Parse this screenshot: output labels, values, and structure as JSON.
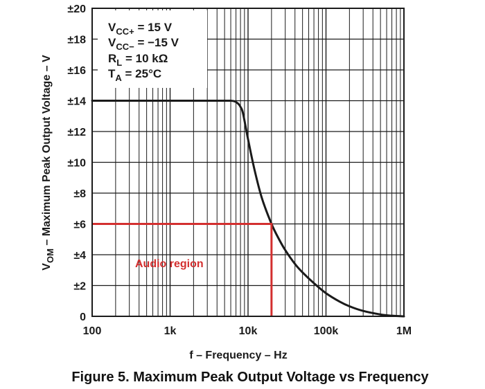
{
  "figure_caption": "Figure 5. Maximum Peak Output Voltage vs Frequency",
  "conditions": [
    {
      "main": "V",
      "sub": "CC+",
      "rest": " = 15 V"
    },
    {
      "main": "V",
      "sub": "CC−",
      "rest": " = −15 V"
    },
    {
      "main": "R",
      "sub": "L",
      "rest": " = 10 kΩ"
    },
    {
      "main": "T",
      "sub": "A",
      "rest": " = 25°C"
    }
  ],
  "colors": {
    "curve": "#1a1a1a",
    "audio": "#d32f2f",
    "grid": "#1a1a1a",
    "background": "#ffffff"
  },
  "chart_data": {
    "type": "line",
    "xscale": "log",
    "xlim": [
      100,
      1000000
    ],
    "ylim": [
      0,
      20
    ],
    "xlabel": "f – Frequency – Hz",
    "ylabel": {
      "main": "V",
      "sub": "OM",
      "rest": " – Maximum Peak Output Voltage – V"
    },
    "x_ticks": [
      {
        "value": 100,
        "label": "100"
      },
      {
        "value": 1000,
        "label": "1k"
      },
      {
        "value": 10000,
        "label": "10k"
      },
      {
        "value": 100000,
        "label": "100k"
      },
      {
        "value": 1000000,
        "label": "1M"
      }
    ],
    "y_ticks": [
      {
        "value": 0,
        "label": "0"
      },
      {
        "value": 2,
        "label": "±2"
      },
      {
        "value": 4,
        "label": "±4"
      },
      {
        "value": 6,
        "label": "±6"
      },
      {
        "value": 8,
        "label": "±8"
      },
      {
        "value": 10,
        "label": "±10"
      },
      {
        "value": 12,
        "label": "±12"
      },
      {
        "value": 14,
        "label": "±14"
      },
      {
        "value": 16,
        "label": "±16"
      },
      {
        "value": 18,
        "label": "±18"
      },
      {
        "value": 20,
        "label": "±20"
      }
    ],
    "grid": true,
    "series": [
      {
        "x": [
          100,
          1000,
          5000,
          6000,
          6800,
          7500,
          8000,
          8600,
          10000,
          12000,
          15000,
          20000,
          25000,
          30000,
          40000,
          50000,
          70000,
          100000,
          150000,
          200000,
          300000,
          500000,
          700000,
          1000000
        ],
        "values": [
          14,
          14,
          14,
          14,
          13.95,
          13.8,
          13.6,
          13.2,
          11.5,
          9.6,
          7.7,
          6.0,
          5.0,
          4.3,
          3.4,
          2.85,
          2.15,
          1.5,
          0.95,
          0.65,
          0.35,
          0.12,
          0.04,
          0.0
        ]
      }
    ],
    "annotations": [
      {
        "label": "Audio region",
        "color": "#d32f2f",
        "boundary_x": [
          100,
          20000,
          20000
        ],
        "boundary_y": [
          6,
          6,
          0
        ]
      }
    ]
  }
}
